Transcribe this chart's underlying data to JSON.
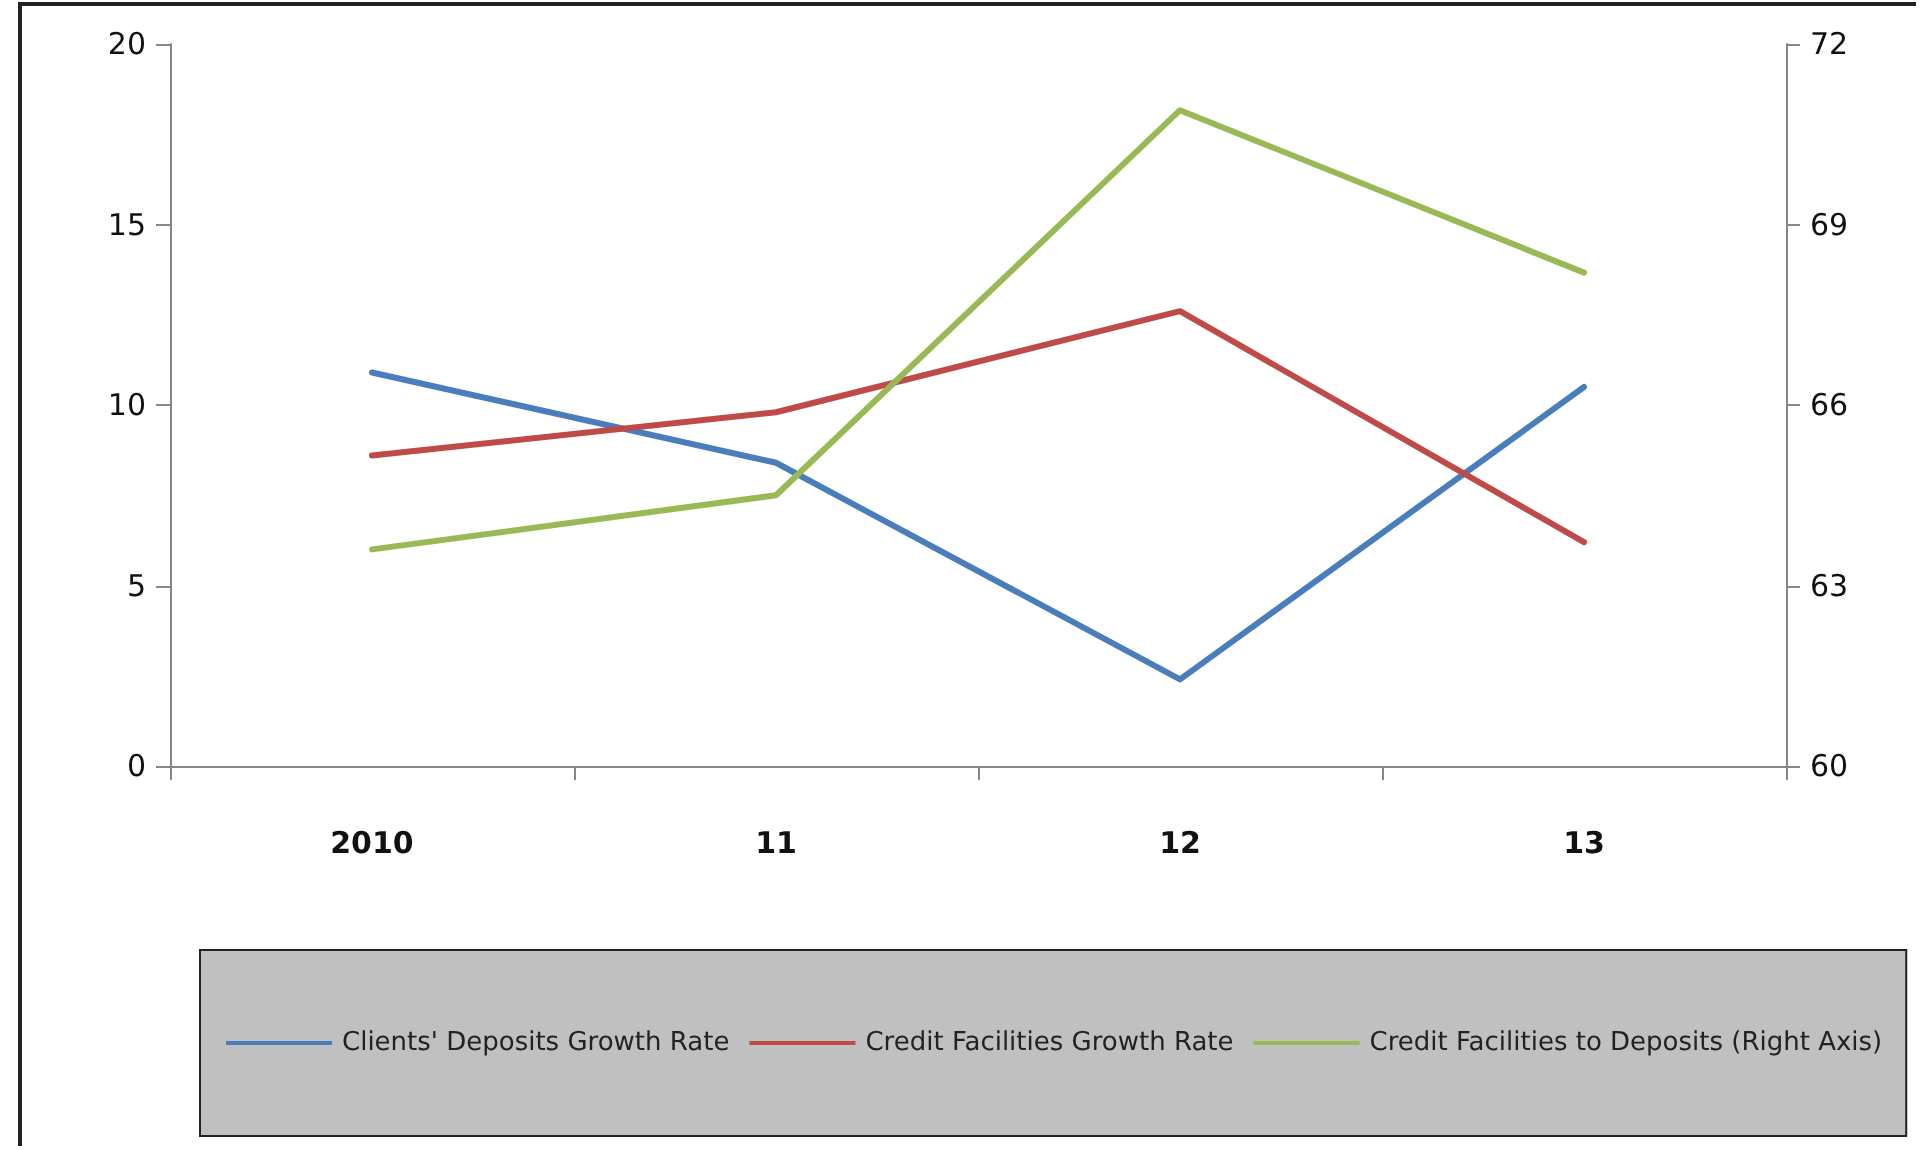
{
  "chart_data": {
    "type": "line",
    "categories": [
      "2010",
      "11",
      "12",
      "13"
    ],
    "series": [
      {
        "name": "Clients' Deposits Growth Rate",
        "color": "#4a7ebb",
        "values": [
          10.9,
          8.4,
          2.4,
          10.5
        ]
      },
      {
        "name": "Credit Facilities Growth Rate",
        "color": "#be4b48",
        "values": [
          8.6,
          9.8,
          12.6,
          6.2
        ]
      },
      {
        "name": "Credit Facilities to Deposits (Right Axis)",
        "color": "#98b954",
        "values": [
          63.6,
          64.5,
          70.9,
          68.2
        ],
        "axis": "y2"
      }
    ],
    "ylim": [
      0,
      20
    ],
    "yticks": [
      0,
      5,
      10,
      15,
      20
    ],
    "y2lim": [
      60,
      72
    ],
    "y2ticks": [
      60,
      63,
      66,
      69,
      72
    ],
    "grid": false,
    "legend": "bottom",
    "marker": "none",
    "line_style": "solid"
  }
}
